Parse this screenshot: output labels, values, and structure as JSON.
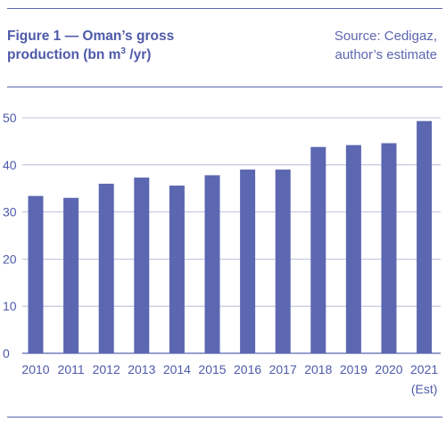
{
  "header": {
    "title_pre": "Figure 1 — Oman’s gross production (bn m",
    "title_sup": "3",
    "title_post": " /yr)",
    "source_line1": "Source: Cedigaz,",
    "source_line2": "author’s estimate"
  },
  "colors": {
    "bar": "#5c67b1",
    "text": "#4e5aa9",
    "grid": "#aab0d6"
  },
  "chart_data": {
    "type": "bar",
    "title": "Figure 1 — Oman’s gross production (bn m3 /yr)",
    "categories": [
      "2010",
      "2011",
      "2012",
      "2013",
      "2014",
      "2015",
      "2016",
      "2017",
      "2018",
      "2019",
      "2020",
      "2021"
    ],
    "category_sublabels": [
      "",
      "",
      "",
      "",
      "",
      "",
      "",
      "",
      "",
      "",
      "",
      "(Est)"
    ],
    "values": [
      33.4,
      33.0,
      36.0,
      37.3,
      35.6,
      37.8,
      39.0,
      39.0,
      43.8,
      44.2,
      44.6,
      49.3
    ],
    "ylim": [
      0,
      50
    ],
    "yticks": [
      0,
      10,
      20,
      30,
      40,
      50
    ],
    "grid": true,
    "xlabel": "",
    "ylabel": ""
  }
}
